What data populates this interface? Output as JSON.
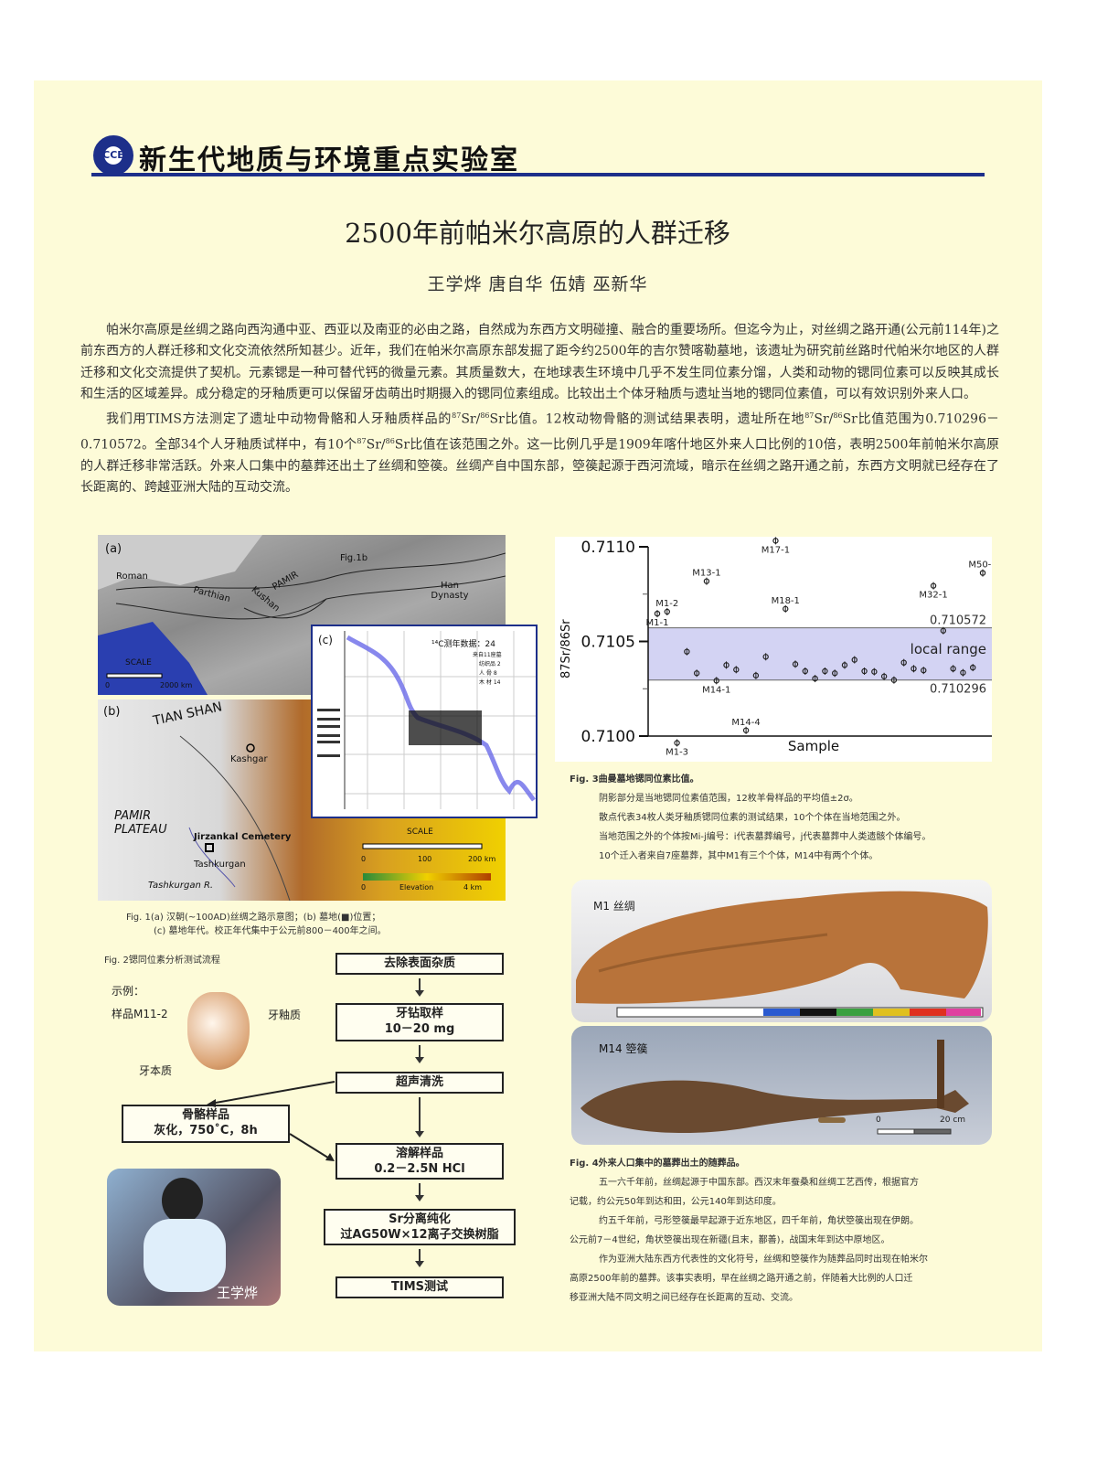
{
  "header": {
    "logo_text": "CCE",
    "lab_name": "新生代地质与环境重点实验室"
  },
  "title": "2500年前帕米尔高原的人群迁移",
  "authors": "王学烨  唐自华  伍婧  巫新华",
  "body": {
    "p1": "帕米尔高原是丝绸之路向西沟通中亚、西亚以及南亚的必由之路，自然成为东西方文明碰撞、融合的重要场所。但迄今为止，对丝绸之路开通(公元前114年)之前东西方的人群迁移和文化交流依然所知甚少。近年，我们在帕米尔高原东部发掘了距今约2500年的吉尔赞喀勒墓地，该遗址为研究前丝路时代帕米尔地区的人群迁移和文化交流提供了契机。元素锶是一种可替代钙的微量元素。其质量数大，在地球表生环境中几乎不发生同位素分馏，人类和动物的锶同位素可以反映其成长和生活的区域差异。成分稳定的牙釉质更可以保留牙齿萌出时期摄入的锶同位素组成。比较出土个体牙釉质与遗址当地的锶同位素值，可以有效识别外来人口。",
    "p2a": "我们用TIMS方法测定了遗址中动物骨骼和人牙釉质样品的",
    "p2b": "Sr/",
    "p2c": "Sr比值。12枚动物骨骼的测试结果表明，遗址所在地",
    "p2d": "Sr比值范围为0.710296－0.710572。全部34个人牙釉质试样中，有10个",
    "p2e": "Sr比值在该范围之外。这一比例几乎是1909年喀什地区外来人口比例的10倍，表明2500年前帕米尔高原的人群迁移非常活跃。外来人口集中的墓葬还出土了丝绸和箜篌。丝绸产自中国东部，箜篌起源于西河流域，暗示在丝绸之路开通之前，东西方文明就已经存在了长距离的、跨越亚洲大陆的互动交流。",
    "sup87": "87",
    "sup86": "86"
  },
  "fig1": {
    "a_label": "(a)",
    "a_places": [
      "Roman",
      "Parthian",
      "Kushan",
      "PAMIR",
      "Han Dynasty",
      "Fig.1b"
    ],
    "a_scale": "SCALE",
    "a_scale_ticks": [
      "0",
      "2000 km"
    ],
    "b_label": "(b)",
    "b_places": [
      "TIAN SHAN",
      "Kashgar",
      "PAMIR PLATEAU",
      "Jirzankal Cemetery",
      "Tashkurgan",
      "Tashkurgan R."
    ],
    "b_scale": "SCALE",
    "b_scale_ticks": [
      "0",
      "100",
      "200 km"
    ],
    "b_elev": [
      "0",
      "Elevation",
      "4 km"
    ],
    "c_label": "(c)",
    "c_title": "¹⁴C测年数据：24",
    "c_legend": [
      "来自11座墓",
      "纺织品  2",
      "人  骨  8",
      "木  材  14"
    ],
    "caption_1": "Fig. 1(a) 汉朝(~100AD)丝绸之路示意图；(b) 墓地(■)位置；",
    "caption_2": "(c) 墓地年代。校正年代集中于公元前800－400年之间。"
  },
  "fig2": {
    "caption": "Fig. 2锶同位素分析测试流程",
    "example": "示例：",
    "sample": "样品M11-2",
    "enamel": "牙釉质",
    "dentin": "牙本质",
    "steps": [
      [
        "去除表面杂质"
      ],
      [
        "牙钻取样",
        "10－20 mg"
      ],
      [
        "超声清洗"
      ],
      [
        "溶解样品",
        "0.2－2.5N HCl"
      ],
      [
        "Sr分离纯化",
        "过AG50W×12离子交换树脂"
      ],
      [
        "TIMS测试"
      ]
    ],
    "bone": [
      "骨骼样品",
      "灰化，750˚C，8h"
    ],
    "person_name": "王学烨"
  },
  "chart_data": {
    "type": "scatter",
    "ylabel": "87Sr/86Sr",
    "xlabel": "Sample",
    "ylim": [
      0.71,
      0.711
    ],
    "yticks": [
      "0.7100",
      "0.7105",
      "0.7110"
    ],
    "band": {
      "low": 0.710296,
      "high": 0.710572,
      "label": "local range",
      "low_label": "0.710296",
      "high_label": "0.710572",
      "color": "#c8c8f0"
    },
    "points": [
      {
        "x": 1,
        "y": 0.710647,
        "label": "M1-1"
      },
      {
        "x": 2,
        "y": 0.710657,
        "label": "M1-2"
      },
      {
        "x": 3,
        "y": 0.709964,
        "label": "M1-3"
      },
      {
        "x": 4,
        "y": 0.710446
      },
      {
        "x": 5,
        "y": 0.710332
      },
      {
        "x": 6,
        "y": 0.710818,
        "label": "M13-1"
      },
      {
        "x": 7,
        "y": 0.710293,
        "label": "M14-1"
      },
      {
        "x": 8,
        "y": 0.710375
      },
      {
        "x": 9,
        "y": 0.710351
      },
      {
        "x": 10,
        "y": 0.71003,
        "label": "M14-4"
      },
      {
        "x": 11,
        "y": 0.71032
      },
      {
        "x": 12,
        "y": 0.710419
      },
      {
        "x": 13,
        "y": 0.711032,
        "label": "M17-1"
      },
      {
        "x": 14,
        "y": 0.710672,
        "label": "M18-1"
      },
      {
        "x": 15,
        "y": 0.71038
      },
      {
        "x": 16,
        "y": 0.710343
      },
      {
        "x": 17,
        "y": 0.710304
      },
      {
        "x": 18,
        "y": 0.710343
      },
      {
        "x": 19,
        "y": 0.710332
      },
      {
        "x": 20,
        "y": 0.710375
      },
      {
        "x": 21,
        "y": 0.710403
      },
      {
        "x": 22,
        "y": 0.710343
      },
      {
        "x": 23,
        "y": 0.71034
      },
      {
        "x": 24,
        "y": 0.710315
      },
      {
        "x": 25,
        "y": 0.710296
      },
      {
        "x": 26,
        "y": 0.710388
      },
      {
        "x": 27,
        "y": 0.710356
      },
      {
        "x": 28,
        "y": 0.710347
      },
      {
        "x": 29,
        "y": 0.710794,
        "label": "M32-1"
      },
      {
        "x": 30,
        "y": 0.710557
      },
      {
        "x": 31,
        "y": 0.710356
      },
      {
        "x": 32,
        "y": 0.710335
      },
      {
        "x": 33,
        "y": 0.710362
      },
      {
        "x": 34,
        "y": 0.710862,
        "label": "M50-1"
      }
    ]
  },
  "fig3": {
    "lines": [
      "Fig. 3曲曼墓地锶同位素比值。",
      "阴影部分是当地锶同位素值范围，12枚羊骨样品的平均值±2σ。",
      "散点代表34枚人类牙釉质锶同位素的测试结果，10个个体在当地范围之外。",
      "当地范围之外的个体按Mi-j编号：i代表墓葬编号，j代表墓葬中人类遗骸个体编号。",
      "10个迁入者来自7座墓葬，其中M1有三个个体，M14中有两个个体。"
    ]
  },
  "fig4": {
    "silk_label": "M1 丝绸",
    "harp_label": "M14 箜篌",
    "scale": [
      "0",
      "20 cm"
    ],
    "lines": [
      "Fig. 4外来人口集中的墓葬出土的随葬品。",
      "五一六千年前，丝绸起源于中国东部。西汉末年蚕桑和丝绸工艺西传，根据官方",
      "记载，约公元50年到达和田，公元140年到达印度。",
      "约五千年前，弓形箜篌最早起源于近东地区，四千年前，角状箜篌出现在伊朗。",
      "公元前7－4世纪，角状箜篌出现在新疆(且末，鄯善)，战国末年到达中原地区。",
      "作为亚洲大陆东西方代表性的文化符号，丝绸和箜篌作为随葬品同时出现在帕米尔",
      "高原2500年前的墓葬。该事实表明，早在丝绸之路开通之前，伴随着大比例的人口迁",
      "移亚洲大陆不同文明之间已经存在长距离的互动、交流。"
    ]
  }
}
